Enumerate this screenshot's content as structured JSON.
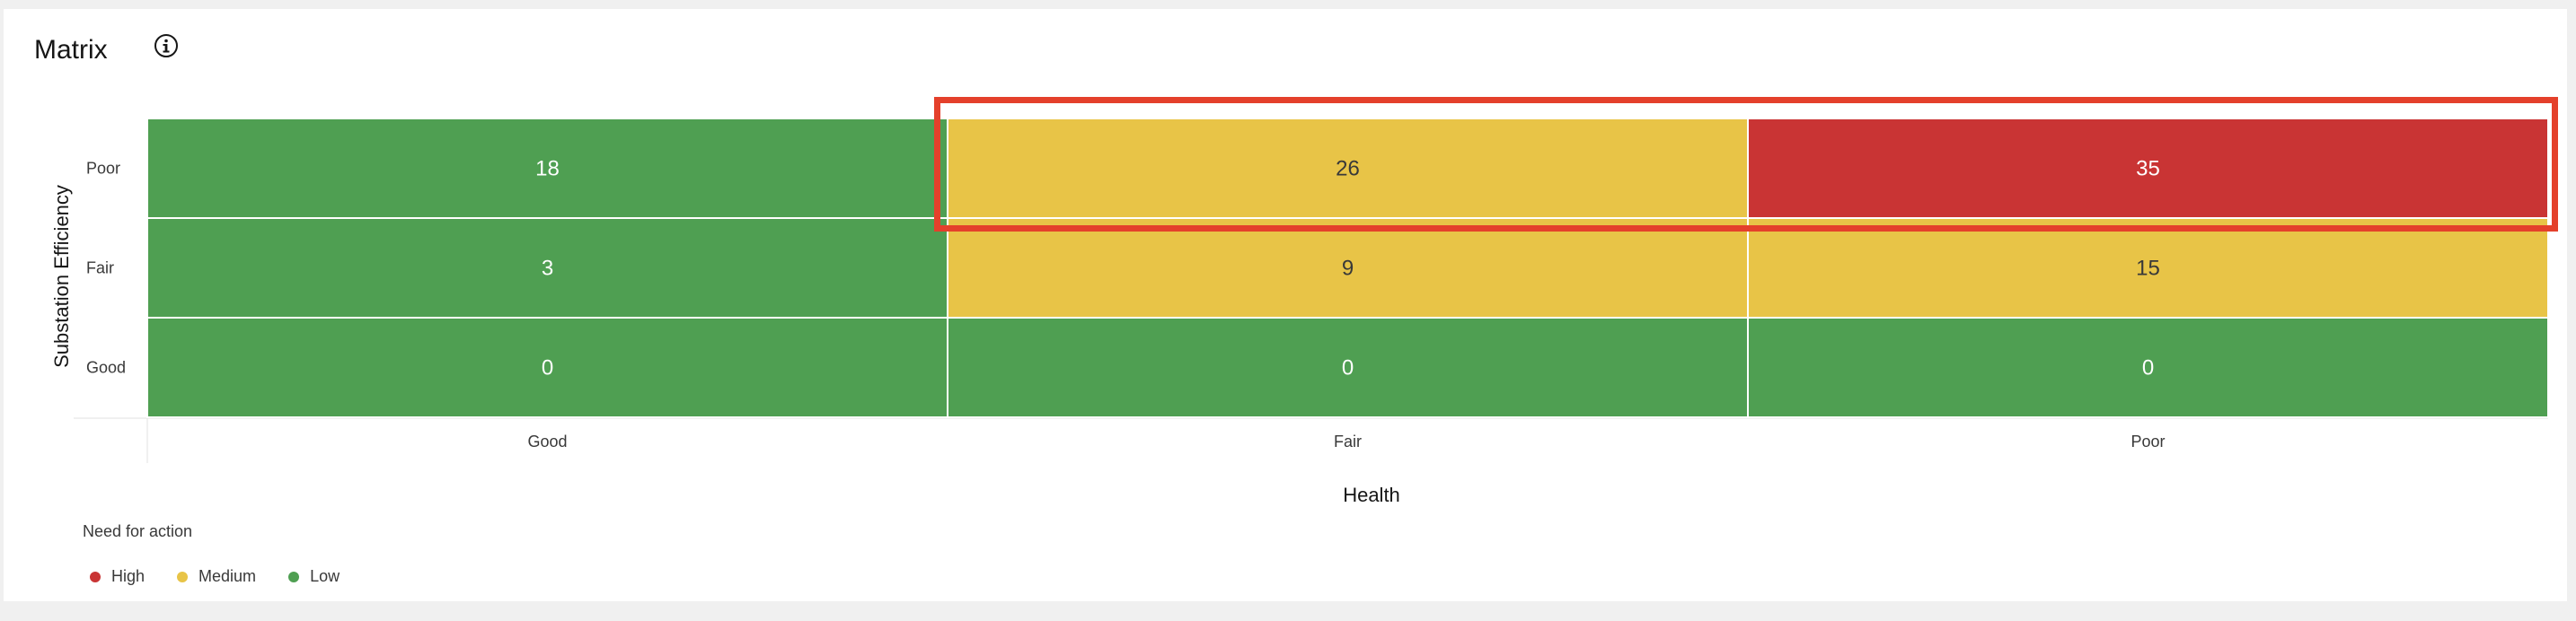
{
  "card": {
    "title": "Matrix",
    "info_icon": "info-icon"
  },
  "chart_data": {
    "type": "heatmap",
    "xlabel": "Health",
    "ylabel": "Substation Efficiency",
    "x_categories": [
      "Good",
      "Fair",
      "Poor"
    ],
    "y_categories": [
      "Poor",
      "Fair",
      "Good"
    ],
    "values": [
      [
        18,
        26,
        35
      ],
      [
        3,
        9,
        15
      ],
      [
        0,
        0,
        0
      ]
    ],
    "levels": [
      [
        "Low",
        "Medium",
        "High"
      ],
      [
        "Low",
        "Medium",
        "Medium"
      ],
      [
        "Low",
        "Low",
        "Low"
      ]
    ],
    "level_colors": {
      "High": "#c93434",
      "Medium": "#e8c447",
      "Low": "#4f9f52"
    }
  },
  "legend": {
    "title": "Need for action",
    "items": [
      {
        "label": "High",
        "color": "#c93434"
      },
      {
        "label": "Medium",
        "color": "#e8c447"
      },
      {
        "label": "Low",
        "color": "#4f9f52"
      }
    ]
  },
  "annotation": {
    "highlight_color": "#e4402b"
  }
}
